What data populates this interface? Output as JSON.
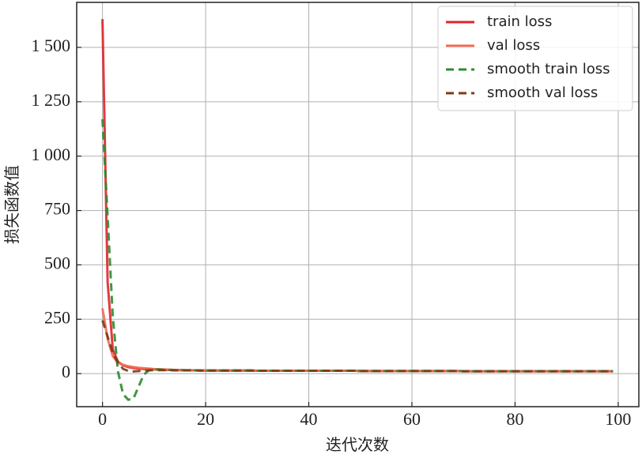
{
  "chart_data": {
    "type": "line",
    "xlabel": "迭代次数",
    "ylabel": "损失函数值",
    "x": [
      0,
      1,
      2,
      3,
      4,
      5,
      6,
      7,
      8,
      9,
      10,
      11,
      12,
      13,
      14,
      15,
      16,
      17,
      18,
      19,
      20,
      21,
      22,
      23,
      24,
      25,
      26,
      27,
      28,
      29,
      30,
      31,
      32,
      33,
      34,
      35,
      36,
      37,
      38,
      39,
      40,
      41,
      42,
      43,
      44,
      45,
      46,
      47,
      48,
      49,
      50,
      51,
      52,
      53,
      54,
      55,
      56,
      57,
      58,
      59,
      60,
      61,
      62,
      63,
      64,
      65,
      66,
      67,
      68,
      69,
      70,
      71,
      72,
      73,
      74,
      75,
      76,
      77,
      78,
      79,
      80,
      81,
      82,
      83,
      84,
      85,
      86,
      87,
      88,
      89,
      90,
      91,
      92,
      93,
      94,
      95,
      96,
      97,
      98,
      99
    ],
    "series": [
      {
        "name": "train loss",
        "color": "#e0242c",
        "dash": false,
        "values": [
          1630,
          420,
          110,
          55,
          38,
          30,
          26,
          23,
          21,
          20,
          19,
          18,
          17,
          17,
          16,
          16,
          15,
          15,
          15,
          14,
          14,
          14,
          14,
          14,
          14,
          14,
          14,
          14,
          14,
          14,
          13,
          13,
          13,
          13,
          13,
          13,
          13,
          13,
          13,
          13,
          13,
          13,
          13,
          13,
          13,
          13,
          13,
          13,
          13,
          13,
          12,
          12,
          12,
          12,
          12,
          12,
          12,
          12,
          12,
          12,
          12,
          12,
          12,
          12,
          12,
          12,
          12,
          12,
          12,
          12,
          11,
          11,
          11,
          11,
          11,
          11,
          11,
          11,
          11,
          11,
          11,
          11,
          11,
          11,
          11,
          11,
          11,
          11,
          11,
          11,
          11,
          11,
          11,
          11,
          11,
          11,
          11,
          11,
          11,
          11
        ]
      },
      {
        "name": "val loss",
        "color": "#f26b50",
        "dash": false,
        "values": [
          300,
          160,
          80,
          50,
          40,
          34,
          30,
          27,
          25,
          23,
          21,
          20,
          19,
          18,
          17,
          17,
          16,
          16,
          15,
          15,
          14,
          14,
          14,
          14,
          14,
          14,
          14,
          14,
          14,
          14,
          13,
          13,
          13,
          13,
          13,
          13,
          13,
          13,
          13,
          13,
          13,
          13,
          13,
          13,
          13,
          13,
          13,
          13,
          13,
          13,
          12,
          12,
          12,
          12,
          12,
          12,
          12,
          12,
          12,
          12,
          12,
          12,
          12,
          12,
          12,
          12,
          12,
          12,
          12,
          12,
          11,
          11,
          11,
          11,
          11,
          11,
          11,
          11,
          11,
          11,
          11,
          11,
          11,
          11,
          11,
          11,
          11,
          11,
          11,
          11,
          11,
          11,
          11,
          11,
          11,
          11,
          11,
          11,
          11,
          11
        ]
      },
      {
        "name": "smooth train loss",
        "color": "#2e8b30",
        "dash": true,
        "values": [
          1170,
          720,
          260,
          10,
          -95,
          -120,
          -115,
          -60,
          -5,
          15,
          19,
          19,
          18,
          17,
          16,
          16,
          15,
          15,
          15,
          14,
          14,
          14,
          14,
          14,
          14,
          14,
          14,
          14,
          14,
          14,
          13,
          13,
          13,
          13,
          13,
          13,
          13,
          13,
          13,
          13,
          13,
          13,
          13,
          13,
          13,
          13,
          13,
          13,
          13,
          13,
          12,
          12,
          12,
          12,
          12,
          12,
          12,
          12,
          12,
          12,
          12,
          12,
          12,
          12,
          12,
          12,
          12,
          12,
          12,
          12,
          11,
          11,
          11,
          11,
          11,
          11,
          11,
          11,
          11,
          11,
          11,
          11,
          11,
          11,
          11,
          11,
          11,
          11,
          11,
          11,
          11,
          11,
          11,
          11,
          11,
          11,
          11,
          11,
          11,
          11
        ]
      },
      {
        "name": "smooth val loss",
        "color": "#7b3a1a",
        "dash": true,
        "values": [
          245,
          170,
          95,
          50,
          22,
          12,
          10,
          12,
          14,
          15,
          16,
          16,
          16,
          16,
          15,
          15,
          15,
          15,
          15,
          14,
          14,
          14,
          14,
          14,
          14,
          14,
          14,
          14,
          14,
          14,
          13,
          13,
          13,
          13,
          13,
          13,
          13,
          13,
          13,
          13,
          13,
          13,
          13,
          13,
          13,
          13,
          13,
          13,
          13,
          13,
          12,
          12,
          12,
          12,
          12,
          12,
          12,
          12,
          12,
          12,
          12,
          12,
          12,
          12,
          12,
          12,
          12,
          12,
          12,
          12,
          11,
          11,
          11,
          11,
          11,
          11,
          11,
          11,
          11,
          11,
          11,
          11,
          11,
          11,
          11,
          11,
          11,
          11,
          11,
          11,
          11,
          11,
          11,
          11,
          11,
          11,
          11,
          11,
          11,
          11
        ]
      }
    ],
    "xlim": [
      -5,
      104
    ],
    "ylim": [
      -152,
      1707
    ],
    "xticks": [
      0,
      20,
      40,
      60,
      80,
      100
    ],
    "yticks": [
      0,
      250,
      500,
      750,
      {
        "value": 1000,
        "label": "1 000"
      },
      {
        "value": 1250,
        "label": "1 250"
      },
      {
        "value": 1500,
        "label": "1 500"
      }
    ],
    "grid": true,
    "legend": "upper right"
  }
}
